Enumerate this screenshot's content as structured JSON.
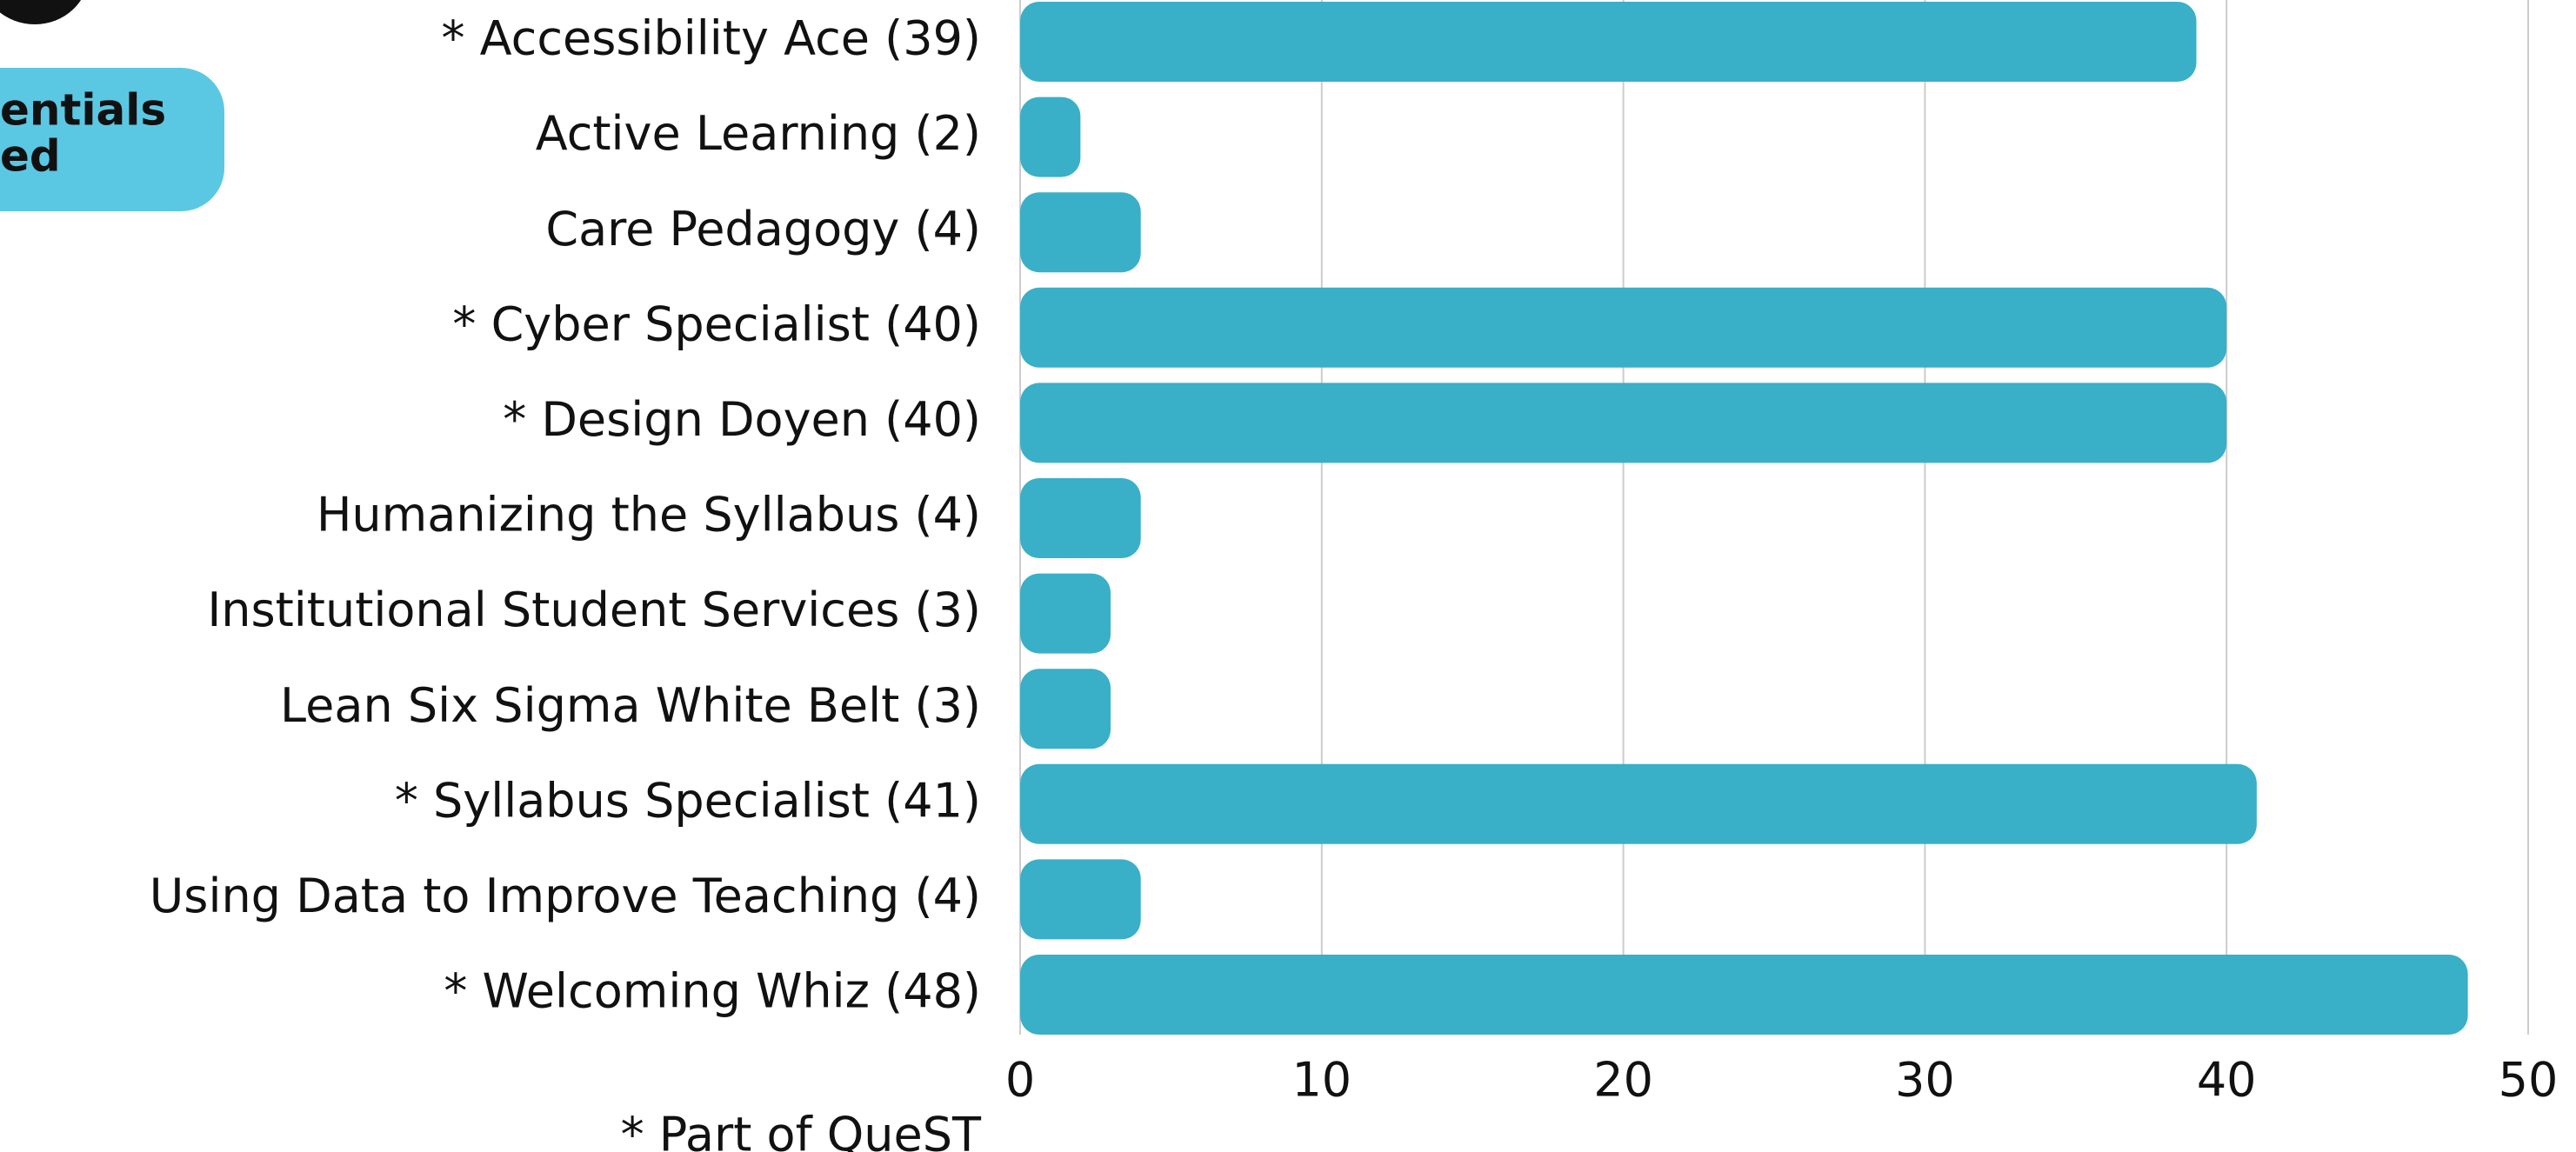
{
  "chart_data": {
    "type": "barh",
    "badge_lines": [
      "entials",
      "ed"
    ],
    "categories": [
      "* Accessibility Ace (39)",
      "Active Learning (2)",
      "Care Pedagogy (4)",
      "* Cyber Specialist (40)",
      "* Design Doyen (40)",
      "Humanizing the Syllabus (4)",
      "Institutional Student Services (3)",
      "Lean Six Sigma White Belt (3)",
      "* Syllabus Specialist (41)",
      "Using Data to Improve Teaching (4)",
      "* Welcoming Whiz (48)"
    ],
    "values": [
      39,
      2,
      4,
      40,
      40,
      4,
      3,
      3,
      41,
      4,
      48
    ],
    "color": "#3aafc8",
    "xlim": [
      0,
      50
    ],
    "xticks": [
      0,
      10,
      20,
      30,
      40,
      50
    ],
    "grid": true,
    "annotation": "* Part of QueST"
  }
}
